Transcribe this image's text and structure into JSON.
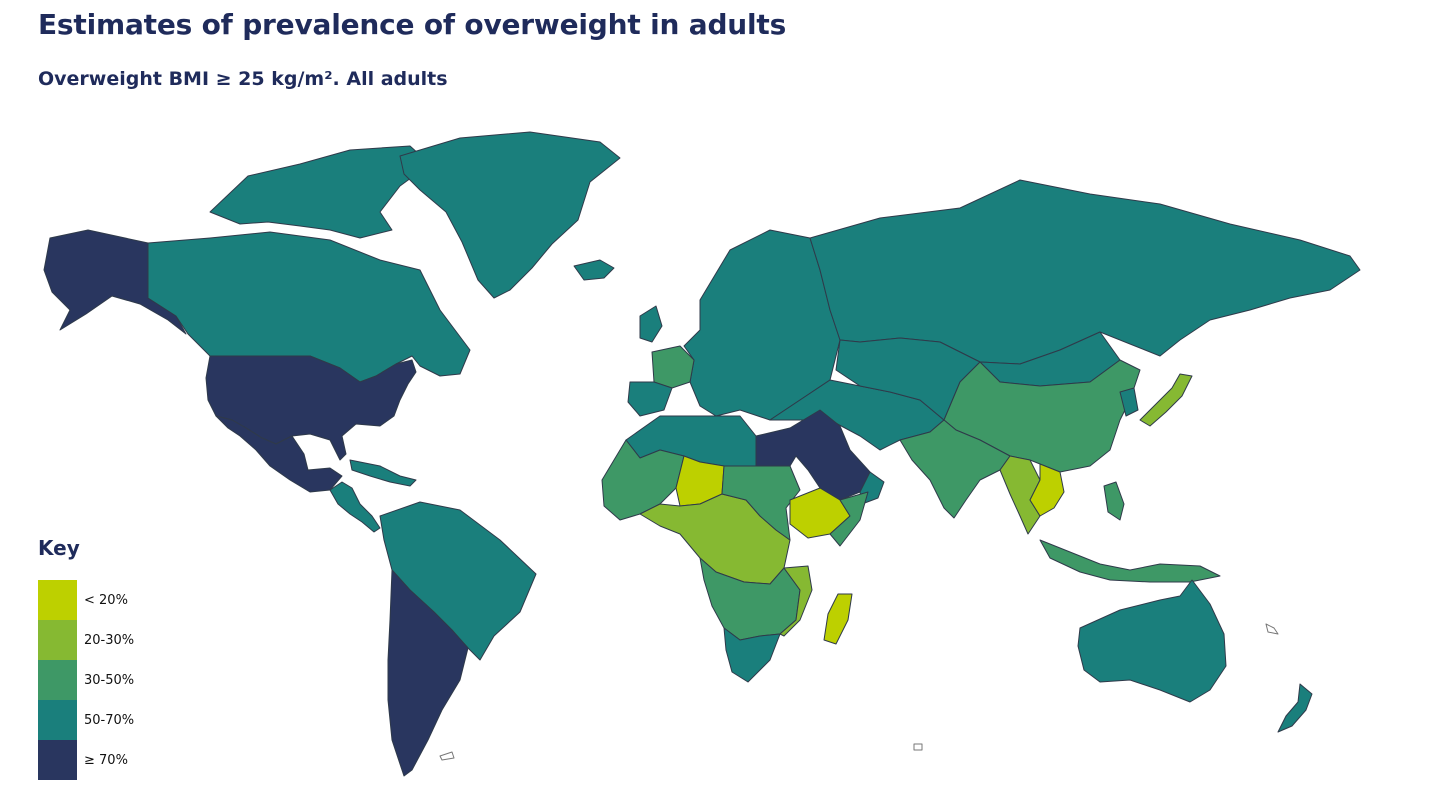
{
  "header": {
    "title": "Estimates of prevalence of overweight in adults",
    "subtitle": "Overweight BMI ≥ 25 kg/m². All adults"
  },
  "legend": {
    "heading": "Key",
    "items": [
      {
        "label": "< 20%",
        "color": "#bdd000"
      },
      {
        "label": "20-30%",
        "color": "#86b932"
      },
      {
        "label": "30-50%",
        "color": "#3e9866"
      },
      {
        "label": "50-70%",
        "color": "#1a7f7c"
      },
      {
        "label": "≥ 70%",
        "color": "#29365f"
      }
    ]
  },
  "map": {
    "colors": {
      "lt20": "#bdd000",
      "c20_30": "#86b932",
      "c30_50": "#3e9866",
      "c50_70": "#1a7f7c",
      "gte70": "#29365f"
    },
    "regions": [
      {
        "name": "alaska",
        "class": "gte70"
      },
      {
        "name": "canada",
        "class": "c50_70"
      },
      {
        "name": "canadian-arctic-islands",
        "class": "c50_70"
      },
      {
        "name": "greenland",
        "class": "c50_70"
      },
      {
        "name": "iceland",
        "class": "c50_70"
      },
      {
        "name": "united-states",
        "class": "gte70"
      },
      {
        "name": "mexico",
        "class": "gte70"
      },
      {
        "name": "central-america",
        "class": "c50_70"
      },
      {
        "name": "caribbean",
        "class": "c50_70"
      },
      {
        "name": "south-america-north",
        "class": "c50_70"
      },
      {
        "name": "argentina-chile",
        "class": "gte70"
      },
      {
        "name": "europe",
        "class": "c50_70"
      },
      {
        "name": "france",
        "class": "c30_50"
      },
      {
        "name": "russia",
        "class": "c50_70"
      },
      {
        "name": "middle-east-north",
        "class": "c50_70"
      },
      {
        "name": "central-asia",
        "class": "c50_70"
      },
      {
        "name": "egypt-saudi-arabia",
        "class": "gte70"
      },
      {
        "name": "north-africa",
        "class": "c50_70"
      },
      {
        "name": "west-africa",
        "class": "c30_50"
      },
      {
        "name": "niger-chad",
        "class": "lt20"
      },
      {
        "name": "central-africa",
        "class": "c20_30"
      },
      {
        "name": "sudan-east-africa",
        "class": "c30_50"
      },
      {
        "name": "ethiopia",
        "class": "lt20"
      },
      {
        "name": "southern-africa",
        "class": "c30_50"
      },
      {
        "name": "south-africa",
        "class": "c50_70"
      },
      {
        "name": "mozambique",
        "class": "c20_30"
      },
      {
        "name": "madagascar",
        "class": "lt20"
      },
      {
        "name": "china",
        "class": "c30_50"
      },
      {
        "name": "mongolia",
        "class": "c50_70"
      },
      {
        "name": "india",
        "class": "c30_50"
      },
      {
        "name": "southeast-asia",
        "class": "c20_30"
      },
      {
        "name": "vietnam-laos",
        "class": "lt20"
      },
      {
        "name": "japan",
        "class": "c20_30"
      },
      {
        "name": "indonesia",
        "class": "c30_50"
      },
      {
        "name": "australia",
        "class": "c50_70"
      },
      {
        "name": "new-zealand",
        "class": "c50_70"
      }
    ]
  }
}
